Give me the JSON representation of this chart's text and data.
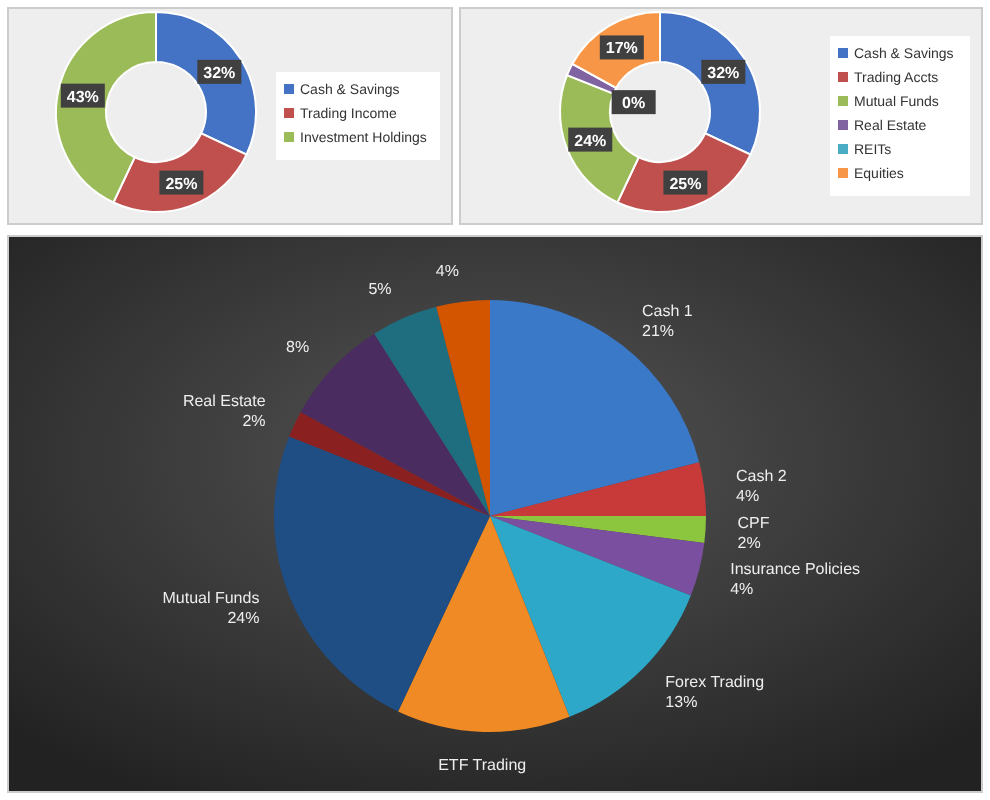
{
  "chart_data": [
    {
      "type": "donut",
      "categories": [
        "Cash & Savings",
        "Trading Income",
        "Investment Holdings"
      ],
      "values": [
        32,
        25,
        43
      ],
      "colors": [
        "#4472c4",
        "#c0504d",
        "#9bbb59"
      ],
      "value_labels": [
        "32%",
        "25%",
        "43%"
      ],
      "legend": "right"
    },
    {
      "type": "donut",
      "categories": [
        "Cash & Savings",
        "Trading Accts",
        "Mutual Funds",
        "Real Estate",
        "REITs",
        "Equities"
      ],
      "values": [
        32,
        25,
        24,
        2,
        0,
        17
      ],
      "colors": [
        "#4472c4",
        "#c0504d",
        "#9bbb59",
        "#8064a2",
        "#4bacc6",
        "#f79646"
      ],
      "value_labels": [
        "32%",
        "25%",
        "24%",
        null,
        "0%",
        "17%"
      ],
      "legend": "right"
    },
    {
      "type": "pie",
      "categories": [
        "Cash 1",
        "Cash 2",
        "CPF",
        "Insurance Policies",
        "Forex Trading",
        "ETF Trading",
        "Mutual Funds",
        "Real Estate",
        null,
        null,
        null
      ],
      "values": [
        21,
        4,
        2,
        4,
        13,
        13,
        24,
        2,
        8,
        5,
        4
      ],
      "colors": [
        "#3a78c8",
        "#c83a3a",
        "#8cc63e",
        "#7a4fa0",
        "#2ea8c8",
        "#f08a24",
        "#1f4e85",
        "#8b2020",
        "#4a2c60",
        "#1f6e80",
        "#d45500"
      ],
      "value_labels": [
        "21%",
        "4%",
        "2%",
        "4%",
        "13%",
        null,
        "24%",
        "2%",
        "8%",
        "5%",
        "4%"
      ],
      "legend": false
    }
  ]
}
